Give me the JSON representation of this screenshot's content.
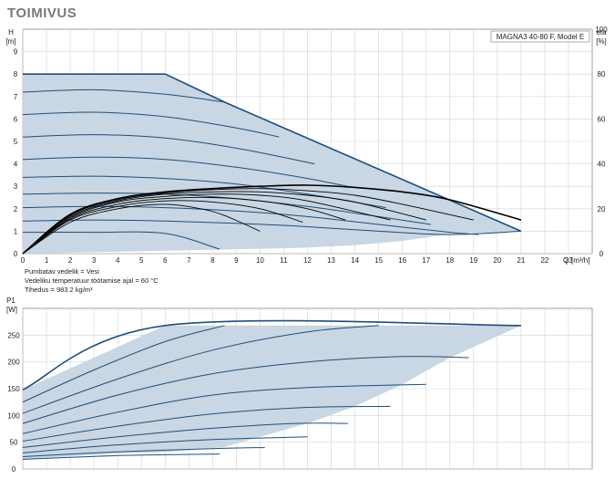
{
  "title": "TOIMIVUS",
  "chart_data": [
    {
      "type": "line",
      "model_label": "MAGNA3 40-80 F, Model E",
      "xlabel": "Q [m³/h]",
      "xlabel_q": "Q",
      "xlabel_unit": "[m³/h]",
      "ylabel_symbol": "H",
      "ylabel_unit": "[m]",
      "y2label_symbol": "eta",
      "y2label_unit": "[%]",
      "xlim": [
        0,
        24
      ],
      "ylim": [
        0,
        10
      ],
      "y2lim": [
        0,
        100
      ],
      "x_ticks": [
        0,
        1,
        2,
        3,
        4,
        5,
        6,
        7,
        8,
        9,
        10,
        11,
        12,
        13,
        14,
        15,
        16,
        17,
        18,
        19,
        20,
        21,
        22,
        23
      ],
      "y_ticks": [
        0,
        1,
        2,
        3,
        4,
        5,
        6,
        7,
        8,
        9
      ],
      "y2_ticks": [
        0,
        20,
        40,
        60,
        80,
        100
      ],
      "grid": true,
      "envelope": [
        [
          0,
          8.0
        ],
        [
          6,
          8.0
        ],
        [
          8.5,
          6.75
        ],
        [
          21,
          1.0
        ],
        [
          18,
          0.87
        ],
        [
          16,
          0.57
        ],
        [
          14,
          0.38
        ],
        [
          11.5,
          0.25
        ],
        [
          10,
          0.22
        ],
        [
          0,
          0
        ]
      ],
      "series": [
        {
          "values": [
            [
              0,
              7.2
            ],
            [
              3,
              7.3
            ],
            [
              6,
              7.1
            ],
            [
              8.5,
              6.75
            ]
          ]
        },
        {
          "values": [
            [
              0,
              6.2
            ],
            [
              3,
              6.3
            ],
            [
              6,
              6.1
            ],
            [
              9,
              5.6
            ],
            [
              10.8,
              5.2
            ]
          ]
        },
        {
          "values": [
            [
              0,
              5.2
            ],
            [
              3,
              5.3
            ],
            [
              6,
              5.15
            ],
            [
              9,
              4.7
            ],
            [
              12.3,
              4.0
            ]
          ]
        },
        {
          "values": [
            [
              0,
              4.2
            ],
            [
              3,
              4.3
            ],
            [
              6,
              4.2
            ],
            [
              9,
              3.85
            ],
            [
              12,
              3.35
            ],
            [
              13.9,
              2.95
            ]
          ]
        },
        {
          "values": [
            [
              0,
              3.4
            ],
            [
              3,
              3.45
            ],
            [
              6,
              3.35
            ],
            [
              9,
              3.1
            ],
            [
              12,
              2.65
            ],
            [
              15.3,
              2.05
            ]
          ]
        },
        {
          "values": [
            [
              0,
              2.65
            ],
            [
              3,
              2.7
            ],
            [
              6,
              2.65
            ],
            [
              9,
              2.45
            ],
            [
              12,
              2.1
            ],
            [
              15,
              1.65
            ],
            [
              17.2,
              1.3
            ]
          ]
        },
        {
          "values": [
            [
              0,
              2.05
            ],
            [
              3,
              2.1
            ],
            [
              6,
              2.05
            ],
            [
              9,
              1.9
            ],
            [
              12,
              1.65
            ],
            [
              15,
              1.3
            ],
            [
              18,
              0.95
            ],
            [
              19.2,
              0.85
            ]
          ]
        },
        {
          "values": [
            [
              0,
              1.45
            ],
            [
              3,
              1.5
            ],
            [
              6,
              1.45
            ],
            [
              9,
              1.35
            ],
            [
              12,
              1.2
            ],
            [
              15,
              1.0
            ],
            [
              18,
              0.85
            ],
            [
              21,
              1.0
            ]
          ]
        },
        {
          "values": [
            [
              0,
              0.95
            ],
            [
              3,
              0.95
            ],
            [
              6,
              0.9
            ],
            [
              8.3,
              0.2
            ]
          ]
        }
      ],
      "efficiency_series": [
        {
          "values": [
            [
              0,
              0
            ],
            [
              2,
              14
            ],
            [
              4,
              20
            ],
            [
              6,
              22
            ],
            [
              7.5,
              20
            ],
            [
              8.5,
              17
            ],
            [
              10,
              10
            ]
          ]
        },
        {
          "values": [
            [
              0,
              0
            ],
            [
              2,
              15
            ],
            [
              4,
              21
            ],
            [
              6,
              23.5
            ],
            [
              8,
              23
            ],
            [
              10,
              20
            ],
            [
              11.8,
              14
            ]
          ]
        },
        {
          "values": [
            [
              0,
              0
            ],
            [
              2,
              15.5
            ],
            [
              4,
              22
            ],
            [
              6,
              24.5
            ],
            [
              8,
              25
            ],
            [
              10,
              23.5
            ],
            [
              12,
              20
            ],
            [
              13.6,
              15
            ]
          ]
        },
        {
          "values": [
            [
              0,
              0
            ],
            [
              2,
              16
            ],
            [
              4,
              23
            ],
            [
              6,
              25.5
            ],
            [
              8,
              26.5
            ],
            [
              10,
              26
            ],
            [
              12,
              23.5
            ],
            [
              15.5,
              15
            ]
          ]
        },
        {
          "values": [
            [
              0,
              0
            ],
            [
              2,
              16.5
            ],
            [
              4,
              23.5
            ],
            [
              6,
              26.5
            ],
            [
              8,
              27.5
            ],
            [
              10,
              27.5
            ],
            [
              12,
              26
            ],
            [
              14,
              23
            ],
            [
              17,
              15
            ]
          ]
        },
        {
          "values": [
            [
              0,
              0
            ],
            [
              2,
              17
            ],
            [
              4,
              24
            ],
            [
              6,
              27
            ],
            [
              8,
              28.5
            ],
            [
              10,
              29
            ],
            [
              12,
              28
            ],
            [
              14,
              26
            ],
            [
              16,
              22
            ],
            [
              19,
              15
            ]
          ]
        },
        {
          "values": [
            [
              0,
              0
            ],
            [
              2,
              17.5
            ],
            [
              4,
              24.5
            ],
            [
              6,
              27.5
            ],
            [
              8,
              29
            ],
            [
              10,
              30
            ],
            [
              12,
              30.5
            ],
            [
              14,
              29.5
            ],
            [
              16,
              27.5
            ],
            [
              18,
              24
            ],
            [
              21,
              15
            ]
          ]
        }
      ]
    },
    {
      "type": "line",
      "ylabel_symbol": "P1",
      "ylabel_unit": "[W]",
      "xlim": [
        0,
        24
      ],
      "ylim": [
        0,
        300
      ],
      "y_ticks": [
        0,
        50,
        100,
        150,
        200,
        250
      ],
      "grid": true,
      "envelope": [
        [
          0,
          148
        ],
        [
          6,
          268
        ],
        [
          21,
          268
        ],
        [
          18,
          208
        ],
        [
          16,
          158
        ],
        [
          14,
          117
        ],
        [
          12,
          85
        ],
        [
          10,
          60
        ],
        [
          8.5,
          41
        ],
        [
          6,
          31
        ],
        [
          4,
          29
        ],
        [
          0,
          18
        ]
      ],
      "series": [
        {
          "values": [
            [
              0,
              148
            ],
            [
              6,
              268
            ],
            [
              21,
              268
            ]
          ]
        },
        {
          "values": [
            [
              0,
              125
            ],
            [
              3,
              185
            ],
            [
              6,
              238
            ],
            [
              8.5,
              268
            ]
          ]
        },
        {
          "values": [
            [
              0,
              104
            ],
            [
              4,
              168
            ],
            [
              8,
              222
            ],
            [
              12,
              256
            ],
            [
              15,
              268
            ]
          ]
        },
        {
          "values": [
            [
              0,
              85
            ],
            [
              4,
              138
            ],
            [
              8,
              178
            ],
            [
              12,
              200
            ],
            [
              16,
              210
            ],
            [
              18.8,
              208
            ]
          ]
        },
        {
          "values": [
            [
              0,
              66
            ],
            [
              4,
              106
            ],
            [
              8,
              138
            ],
            [
              12,
              152
            ],
            [
              17,
              158
            ]
          ]
        },
        {
          "values": [
            [
              0,
              52
            ],
            [
              4,
              80
            ],
            [
              8,
              103
            ],
            [
              12,
              115
            ],
            [
              15.5,
              117
            ]
          ]
        },
        {
          "values": [
            [
              0,
              40
            ],
            [
              4,
              60
            ],
            [
              8,
              76
            ],
            [
              11.5,
              85
            ],
            [
              13.7,
              85
            ]
          ]
        },
        {
          "values": [
            [
              0,
              30
            ],
            [
              4,
              45
            ],
            [
              8,
              55
            ],
            [
              12,
              60
            ]
          ]
        },
        {
          "values": [
            [
              0,
              23
            ],
            [
              4,
              32
            ],
            [
              8,
              38
            ],
            [
              10.2,
              40
            ]
          ]
        },
        {
          "values": [
            [
              0,
              18
            ],
            [
              4,
              25
            ],
            [
              8.3,
              28
            ]
          ]
        }
      ]
    }
  ],
  "notes": {
    "line1": "Pumbatav vedelik = Vesi",
    "line2": "Vedeliku temperatuur töötamise ajal = 60 °C",
    "line3": "Tihedus = 983.2 kg/m³"
  }
}
